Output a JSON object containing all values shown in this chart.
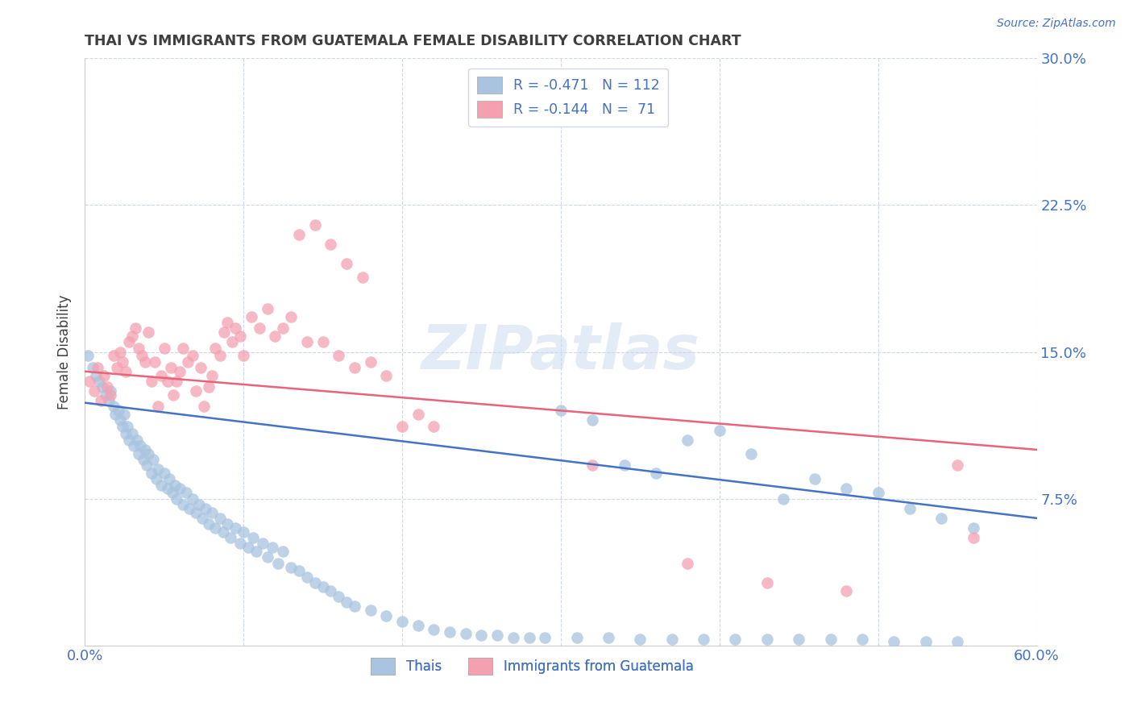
{
  "title": "THAI VS IMMIGRANTS FROM GUATEMALA FEMALE DISABILITY CORRELATION CHART",
  "source": "Source: ZipAtlas.com",
  "ylabel": "Female Disability",
  "x_min": 0.0,
  "x_max": 0.6,
  "y_min": 0.0,
  "y_max": 0.3,
  "x_ticks": [
    0.0,
    0.1,
    0.2,
    0.3,
    0.4,
    0.5,
    0.6
  ],
  "x_tick_labels": [
    "0.0%",
    "",
    "",
    "",
    "",
    "",
    "60.0%"
  ],
  "y_ticks": [
    0.0,
    0.075,
    0.15,
    0.225,
    0.3
  ],
  "y_tick_labels": [
    "",
    "7.5%",
    "15.0%",
    "22.5%",
    "30.0%"
  ],
  "watermark": "ZIPatlas",
  "legend_thai_r": "-0.471",
  "legend_thai_n": "112",
  "legend_guat_r": "-0.144",
  "legend_guat_n": "71",
  "thai_color": "#a8c4e0",
  "guat_color": "#f4a0b0",
  "thai_line_color": "#4472c4",
  "guat_line_color": "#e8647a",
  "thai_label": "Thais",
  "guat_label": "Immigrants from Guatemala",
  "title_color": "#3f3f3f",
  "tick_label_color": "#4472c4",
  "grid_color": "#d0d8e8",
  "thai_x": [
    0.002,
    0.005,
    0.007,
    0.009,
    0.011,
    0.013,
    0.015,
    0.016,
    0.018,
    0.019,
    0.021,
    0.022,
    0.024,
    0.025,
    0.026,
    0.027,
    0.028,
    0.03,
    0.031,
    0.033,
    0.034,
    0.035,
    0.037,
    0.038,
    0.039,
    0.04,
    0.042,
    0.043,
    0.045,
    0.046,
    0.048,
    0.05,
    0.052,
    0.053,
    0.055,
    0.057,
    0.058,
    0.06,
    0.062,
    0.064,
    0.066,
    0.068,
    0.07,
    0.072,
    0.074,
    0.076,
    0.078,
    0.08,
    0.082,
    0.085,
    0.087,
    0.09,
    0.092,
    0.095,
    0.098,
    0.1,
    0.103,
    0.106,
    0.108,
    0.112,
    0.115,
    0.118,
    0.122,
    0.125,
    0.13,
    0.135,
    0.14,
    0.145,
    0.15,
    0.155,
    0.16,
    0.165,
    0.17,
    0.18,
    0.19,
    0.2,
    0.21,
    0.22,
    0.23,
    0.24,
    0.25,
    0.26,
    0.27,
    0.28,
    0.29,
    0.31,
    0.33,
    0.35,
    0.37,
    0.39,
    0.41,
    0.43,
    0.45,
    0.47,
    0.49,
    0.51,
    0.53,
    0.55,
    0.38,
    0.42,
    0.32,
    0.36,
    0.3,
    0.34,
    0.4,
    0.44,
    0.46,
    0.48,
    0.5,
    0.52,
    0.54,
    0.56
  ],
  "thai_y": [
    0.148,
    0.142,
    0.138,
    0.135,
    0.132,
    0.128,
    0.125,
    0.13,
    0.122,
    0.118,
    0.12,
    0.115,
    0.112,
    0.118,
    0.108,
    0.112,
    0.105,
    0.108,
    0.102,
    0.105,
    0.098,
    0.102,
    0.095,
    0.1,
    0.092,
    0.098,
    0.088,
    0.095,
    0.085,
    0.09,
    0.082,
    0.088,
    0.08,
    0.085,
    0.078,
    0.082,
    0.075,
    0.08,
    0.072,
    0.078,
    0.07,
    0.075,
    0.068,
    0.072,
    0.065,
    0.07,
    0.062,
    0.068,
    0.06,
    0.065,
    0.058,
    0.062,
    0.055,
    0.06,
    0.052,
    0.058,
    0.05,
    0.055,
    0.048,
    0.052,
    0.045,
    0.05,
    0.042,
    0.048,
    0.04,
    0.038,
    0.035,
    0.032,
    0.03,
    0.028,
    0.025,
    0.022,
    0.02,
    0.018,
    0.015,
    0.012,
    0.01,
    0.008,
    0.007,
    0.006,
    0.005,
    0.005,
    0.004,
    0.004,
    0.004,
    0.004,
    0.004,
    0.003,
    0.003,
    0.003,
    0.003,
    0.003,
    0.003,
    0.003,
    0.003,
    0.002,
    0.002,
    0.002,
    0.105,
    0.098,
    0.115,
    0.088,
    0.12,
    0.092,
    0.11,
    0.075,
    0.085,
    0.08,
    0.078,
    0.07,
    0.065,
    0.06
  ],
  "guat_x": [
    0.003,
    0.006,
    0.008,
    0.01,
    0.012,
    0.014,
    0.016,
    0.018,
    0.02,
    0.022,
    0.024,
    0.026,
    0.028,
    0.03,
    0.032,
    0.034,
    0.036,
    0.038,
    0.04,
    0.042,
    0.044,
    0.046,
    0.048,
    0.05,
    0.052,
    0.054,
    0.056,
    0.058,
    0.06,
    0.062,
    0.065,
    0.068,
    0.07,
    0.073,
    0.075,
    0.078,
    0.08,
    0.082,
    0.085,
    0.088,
    0.09,
    0.093,
    0.095,
    0.098,
    0.1,
    0.105,
    0.11,
    0.115,
    0.12,
    0.125,
    0.13,
    0.14,
    0.15,
    0.16,
    0.17,
    0.18,
    0.19,
    0.2,
    0.21,
    0.22,
    0.165,
    0.175,
    0.155,
    0.145,
    0.135,
    0.32,
    0.38,
    0.43,
    0.48,
    0.55,
    0.56
  ],
  "guat_y": [
    0.135,
    0.13,
    0.142,
    0.125,
    0.138,
    0.132,
    0.128,
    0.148,
    0.142,
    0.15,
    0.145,
    0.14,
    0.155,
    0.158,
    0.162,
    0.152,
    0.148,
    0.145,
    0.16,
    0.135,
    0.145,
    0.122,
    0.138,
    0.152,
    0.135,
    0.142,
    0.128,
    0.135,
    0.14,
    0.152,
    0.145,
    0.148,
    0.13,
    0.142,
    0.122,
    0.132,
    0.138,
    0.152,
    0.148,
    0.16,
    0.165,
    0.155,
    0.162,
    0.158,
    0.148,
    0.168,
    0.162,
    0.172,
    0.158,
    0.162,
    0.168,
    0.155,
    0.155,
    0.148,
    0.142,
    0.145,
    0.138,
    0.112,
    0.118,
    0.112,
    0.195,
    0.188,
    0.205,
    0.215,
    0.21,
    0.092,
    0.042,
    0.032,
    0.028,
    0.092,
    0.055
  ]
}
